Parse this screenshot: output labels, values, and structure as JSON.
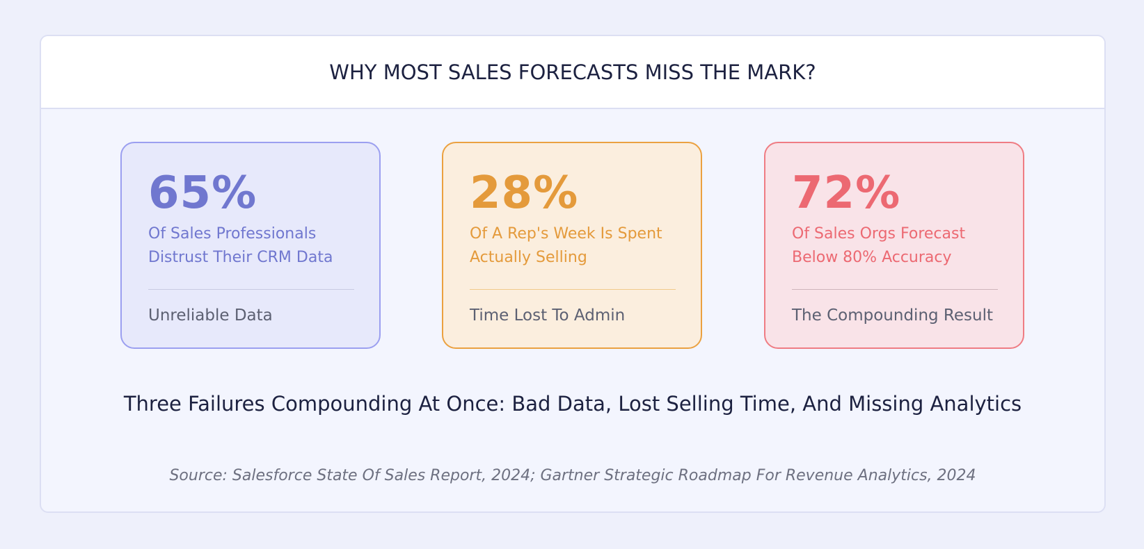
{
  "header": {
    "title": "WHY MOST SALES FORECASTS MISS THE MARK?"
  },
  "cards": [
    {
      "value": "65%",
      "description": "Of Sales Professionals Distrust Their CRM Data",
      "label": "Unreliable Data",
      "accent_color": "#7077cf"
    },
    {
      "value": "28%",
      "description": "Of A Rep's Week Is Spent Actually Selling",
      "label": "Time Lost To Admin",
      "accent_color": "#e49a3b"
    },
    {
      "value": "72%",
      "description": "Of Sales Orgs Forecast Below 80% Accuracy",
      "label": "The Compounding Result",
      "accent_color": "#ec6972"
    }
  ],
  "summary": "Three Failures Compounding At Once: Bad Data, Lost Selling Time, And Missing Analytics",
  "source": "Source: Salesforce State Of Sales Report, 2024; Gartner Strategic Roadmap For Revenue Analytics, 2024"
}
